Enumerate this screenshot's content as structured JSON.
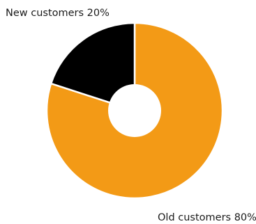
{
  "chart_data": {
    "type": "pie",
    "donut": true,
    "slices": [
      {
        "label": "Old customers 80%",
        "category": "Old customers",
        "value": 80,
        "color": "#f39a16"
      },
      {
        "label": "New customers 20%",
        "category": "New customers",
        "value": 20,
        "color": "#000000"
      }
    ],
    "title": "",
    "legend": "none",
    "grid": false
  }
}
